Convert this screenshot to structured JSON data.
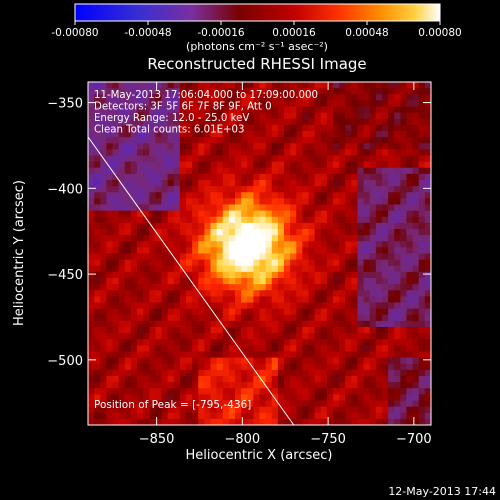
{
  "chart_data": {
    "type": "heatmap",
    "title": "Reconstructed RHESSI Image",
    "info_lines": [
      "11-May-2013 17:06:04.000 to 17:09:00.000",
      "Detectors: 3F 5F 6F 7F 8F 9F, Att 0",
      "Energy Range: 12.0 - 25.0 keV",
      "Clean    Total counts: 6.01E+03"
    ],
    "peak_label": "Position of Peak = [-795,-436]",
    "peak": [
      -795,
      -436
    ],
    "xlabel": "Heliocentric X (arcsec)",
    "ylabel": "Heliocentric Y (arcsec)",
    "xlim": [
      -890,
      -690
    ],
    "ylim": [
      -538,
      -338
    ],
    "x_ticks": [
      -850,
      -800,
      -750,
      -700
    ],
    "y_ticks": [
      -350,
      -400,
      -450,
      -500
    ],
    "limb_line": [
      [
        -890,
        -370
      ],
      [
        -770,
        -538
      ]
    ],
    "source_center": [
      -797,
      -433
    ],
    "colorbar": {
      "range": [
        -0.0008,
        0.0008
      ],
      "ticks": [
        "-0.00080",
        "-0.00048",
        "-0.00016",
        "0.00016",
        "0.00048",
        "0.00080"
      ],
      "label": "(photons cm⁻² s⁻¹ asec⁻²)"
    },
    "grid": false,
    "legend": "none"
  },
  "footer": {
    "timestamp": "12-May-2013 17:44"
  }
}
